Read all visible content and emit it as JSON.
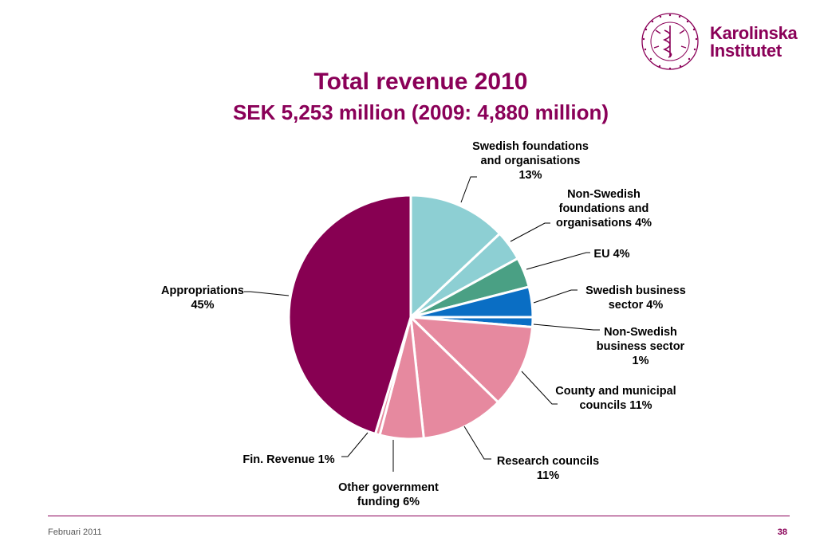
{
  "logo": {
    "line1": "Karolinska",
    "line2": "Institutet",
    "seal_text": "KAROLINSKA INSTITUTET · ANNO 1810"
  },
  "chart_data": {
    "type": "pie",
    "title": "Total revenue 2010",
    "subtitle": "SEK 5,253 million (2009: 4,880 million)",
    "slices": [
      {
        "label": "Swedish foundations and organisations 13%",
        "value": 13,
        "color": "#8dcfd3"
      },
      {
        "label": "Non-Swedish foundations and organisations 4%",
        "value": 4,
        "color": "#8dcfd3"
      },
      {
        "label": "EU 4%",
        "value": 4,
        "color": "#4aa084"
      },
      {
        "label": "Swedish business sector 4%",
        "value": 4,
        "color": "#0a6ec4"
      },
      {
        "label": "Non-Swedish business sector 1%",
        "value": 1.3,
        "color": "#0a6ec4"
      },
      {
        "label": "County and municipal councils 11%",
        "value": 11,
        "color": "#e6899f"
      },
      {
        "label": "Research councils 11%",
        "value": 11,
        "color": "#e6899f"
      },
      {
        "label": "Other government funding 6%",
        "value": 5.8,
        "color": "#e6899f"
      },
      {
        "label": "Fin. Revenue 1%",
        "value": 0.6,
        "color": "#e6899f"
      },
      {
        "label": "Appropriations 45%",
        "value": 45.3,
        "color": "#870052"
      }
    ],
    "legend": "none"
  },
  "footer": {
    "date": "Februari 2011",
    "page": "38"
  }
}
